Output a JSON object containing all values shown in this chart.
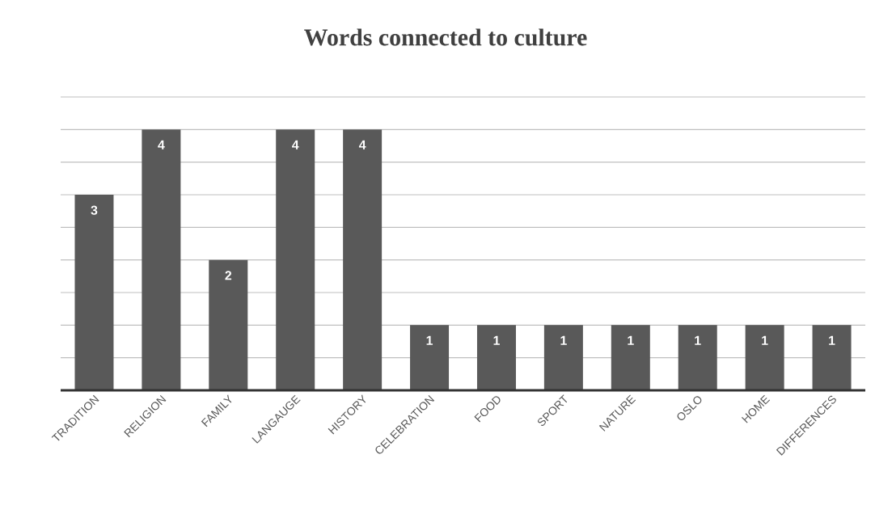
{
  "chart_data": {
    "type": "bar",
    "title": "Words connected to culture",
    "categories": [
      "TRADITION",
      "RELIGION",
      "FAMILY",
      "LANGAUGE",
      "HISTORY",
      "CELEBRATION",
      "FOOD",
      "SPORT",
      "NATURE",
      "OSLO",
      "HOME",
      "DIFFERENCES"
    ],
    "values": [
      3,
      4,
      2,
      4,
      4,
      1,
      1,
      1,
      1,
      1,
      1,
      1
    ],
    "color": "#595959",
    "ylim": [
      0,
      4.5
    ],
    "yticks": [
      {
        "value": 0,
        "label": null
      },
      {
        "value": 0.5,
        "label": null
      },
      {
        "value": 1,
        "label": null
      },
      {
        "value": 1.5,
        "label": null
      },
      {
        "value": 2,
        "label": null
      },
      {
        "value": 2.5,
        "label": null
      },
      {
        "value": 3,
        "label": null
      },
      {
        "value": 3.5,
        "label": null
      },
      {
        "value": 4,
        "label": null
      },
      {
        "value": 4.5,
        "label": null
      }
    ],
    "grid": "y",
    "tick_labels": "x",
    "data_labels": true
  }
}
